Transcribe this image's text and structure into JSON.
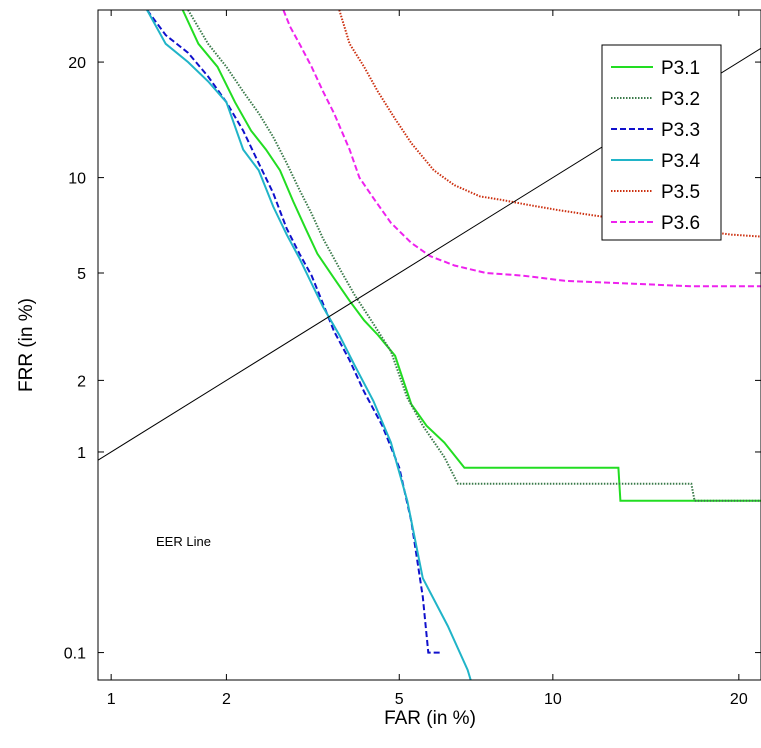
{
  "chart_data": {
    "type": "line",
    "title": "",
    "xlabel": "FAR (in %)",
    "ylabel": "FRR (in %)",
    "xscale": "normal-deviate",
    "yscale": "normal-deviate",
    "xlim": [
      0.92,
      21.5
    ],
    "ylim": [
      0.07,
      26
    ],
    "xticks": [
      1,
      2,
      5,
      10,
      20
    ],
    "yticks": [
      0.1,
      1,
      2,
      5,
      10,
      20
    ],
    "xtick_labels": [
      "1",
      "2",
      "5",
      "10",
      "20"
    ],
    "ytick_labels": [
      "0.1",
      "1",
      "2",
      "5",
      "10",
      "20"
    ],
    "grid": false,
    "legend": "top-right",
    "colors": {
      "P3.1": "#22dd22",
      "P3.2": "#3a7a4a",
      "P3.3": "#1010cc",
      "P3.4": "#20b4c8",
      "P3.5": "#cc3010",
      "P3.6": "#ee22ee",
      "eer": "#000000"
    },
    "series": [
      {
        "name": "P3.1",
        "style": "solid",
        "x": [
          1.55,
          1.7,
          1.9,
          2.1,
          2.3,
          2.5,
          2.7,
          2.9,
          3.1,
          3.3,
          3.6,
          3.9,
          4.2,
          4.5,
          4.9,
          5.3,
          5.7,
          6.2,
          6.8,
          13.0,
          13.1,
          21.5
        ],
        "y": [
          26,
          22,
          19.5,
          16,
          13.5,
          12,
          10.5,
          8.5,
          7.0,
          5.8,
          4.8,
          4.0,
          3.4,
          3.0,
          2.5,
          1.6,
          1.3,
          1.1,
          0.85,
          0.85,
          0.6,
          0.6
        ]
      },
      {
        "name": "P3.2",
        "style": "dotted",
        "x": [
          1.6,
          1.8,
          2.0,
          2.2,
          2.4,
          2.6,
          2.8,
          3.0,
          3.2,
          3.4,
          3.7,
          4.0,
          4.4,
          4.8,
          5.2,
          5.6,
          6.2,
          6.6,
          17.0,
          17.2,
          21.5
        ],
        "y": [
          26,
          22,
          19.5,
          17,
          15,
          13,
          11,
          9.2,
          7.8,
          6.5,
          5.2,
          4.2,
          3.3,
          2.6,
          1.7,
          1.3,
          0.95,
          0.72,
          0.72,
          0.6,
          0.6
        ]
      },
      {
        "name": "P3.3",
        "style": "dashed",
        "x": [
          1.25,
          1.4,
          1.6,
          1.8,
          2.0,
          2.2,
          2.4,
          2.6,
          2.8,
          3.0,
          3.2,
          3.4,
          3.6,
          3.9,
          4.2,
          4.6,
          5.0,
          5.3,
          5.6,
          5.75,
          6.1
        ],
        "y": [
          26,
          23,
          21,
          18.5,
          16,
          13.5,
          11,
          9.0,
          7.0,
          5.8,
          4.9,
          3.9,
          3.1,
          2.4,
          1.8,
          1.3,
          0.85,
          0.48,
          0.2,
          0.1,
          0.1
        ]
      },
      {
        "name": "P3.4",
        "style": "solid",
        "x": [
          1.25,
          1.4,
          1.6,
          1.8,
          2.0,
          2.2,
          2.4,
          2.6,
          2.8,
          3.0,
          3.2,
          3.4,
          3.7,
          4.0,
          4.4,
          4.8,
          5.2,
          5.6,
          6.3,
          6.9,
          7.0
        ],
        "y": [
          26,
          22,
          20,
          18,
          16,
          12,
          10.5,
          8.2,
          6.7,
          5.6,
          4.6,
          3.8,
          3.0,
          2.3,
          1.65,
          1.1,
          0.6,
          0.25,
          0.14,
          0.08,
          0.07
        ]
      },
      {
        "name": "P3.5",
        "style": "dotted",
        "x": [
          3.7,
          3.9,
          4.2,
          4.5,
          4.9,
          5.3,
          5.9,
          6.5,
          7.3,
          8.0,
          9.0,
          10.2,
          11.8,
          13.8,
          16.5,
          19.5,
          21.5
        ],
        "y": [
          26,
          22,
          19.5,
          17,
          14.5,
          12.5,
          10.5,
          9.5,
          8.8,
          8.6,
          8.3,
          8.0,
          7.7,
          7.4,
          7.0,
          6.7,
          6.6
        ]
      },
      {
        "name": "P3.6",
        "style": "dashed",
        "x": [
          2.75,
          2.85,
          3.0,
          3.2,
          3.4,
          3.6,
          3.9,
          4.1,
          4.4,
          4.8,
          5.3,
          5.8,
          6.5,
          7.5,
          8.8,
          10.5,
          13.5,
          17.0,
          21.5
        ],
        "y": [
          26,
          24,
          22,
          19.5,
          17,
          15,
          12,
          10,
          8.7,
          7.3,
          6.3,
          5.7,
          5.3,
          5.0,
          4.9,
          4.7,
          4.6,
          4.5,
          4.5
        ]
      }
    ],
    "eer_line": {
      "label": "EER Line",
      "points": [
        [
          0.92,
          0.92
        ],
        [
          21.5,
          21.5
        ]
      ]
    }
  }
}
